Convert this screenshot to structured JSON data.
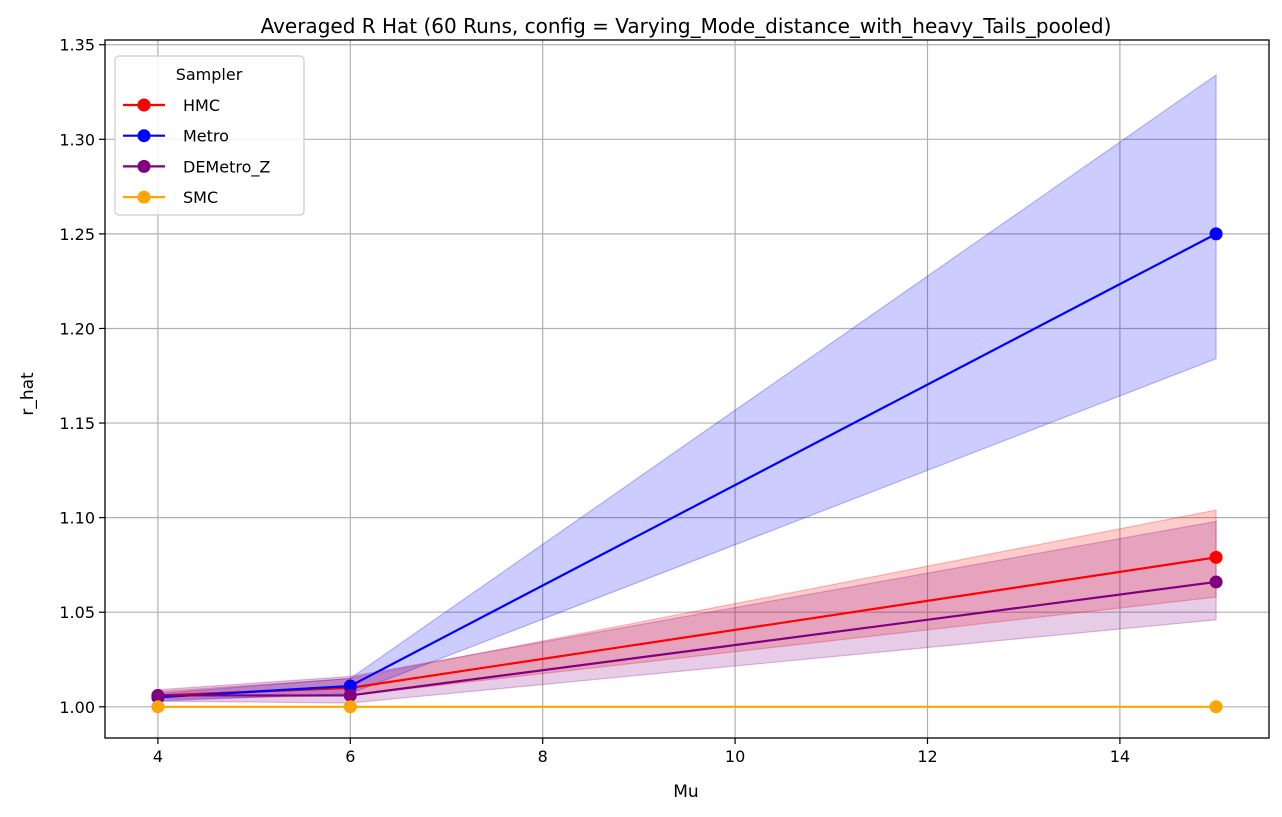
{
  "chart_data": {
    "type": "line",
    "title": "Averaged R Hat (60 Runs, config = Varying_Mode_distance_with_heavy_Tails_pooled)",
    "xlabel": "Mu",
    "ylabel": "r_hat",
    "xlim": [
      3.45,
      15.55
    ],
    "ylim": [
      0.9835,
      1.3525
    ],
    "xticks": [
      4,
      6,
      8,
      10,
      12,
      14
    ],
    "yticks": [
      1.0,
      1.05,
      1.1,
      1.15,
      1.2,
      1.25,
      1.3,
      1.35
    ],
    "ytick_labels": [
      "1.00",
      "1.05",
      "1.10",
      "1.15",
      "1.20",
      "1.25",
      "1.30",
      "1.35"
    ],
    "grid": true,
    "legend_title": "Sampler",
    "legend_position": "upper-left",
    "x": [
      4,
      6,
      15
    ],
    "series": [
      {
        "name": "HMC",
        "color": "#ff0000",
        "values": [
          1.006,
          1.01,
          1.079
        ],
        "lower": [
          1.004,
          1.006,
          1.058
        ],
        "upper": [
          1.008,
          1.015,
          1.104
        ]
      },
      {
        "name": "Metro",
        "color": "#0000ff",
        "values": [
          1.005,
          1.011,
          1.25
        ],
        "lower": [
          1.003,
          1.007,
          1.184
        ],
        "upper": [
          1.007,
          1.015,
          1.334
        ]
      },
      {
        "name": "DEMetro_Z",
        "color": "#800080",
        "values": [
          1.006,
          1.006,
          1.066
        ],
        "lower": [
          1.003,
          1.002,
          1.046
        ],
        "upper": [
          1.009,
          1.016,
          1.098
        ]
      },
      {
        "name": "SMC",
        "color": "#ffa500",
        "values": [
          1.0,
          1.0,
          1.0
        ],
        "lower": [
          1.0,
          1.0,
          1.0
        ],
        "upper": [
          1.0,
          1.0,
          1.0
        ]
      }
    ]
  }
}
